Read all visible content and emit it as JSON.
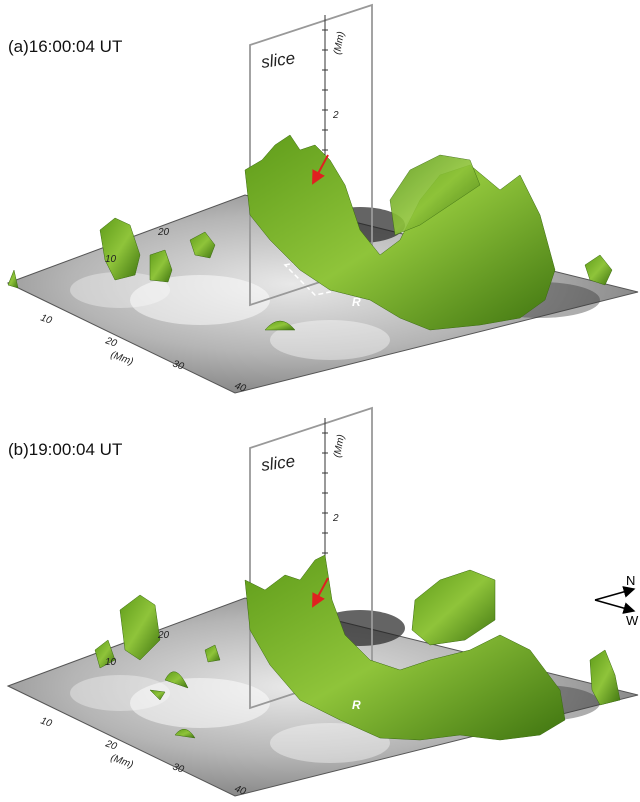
{
  "panels": [
    {
      "label": "(a)16:00:04 UT",
      "slice_label": "slice",
      "slice_unit": "(Mm)",
      "slice_tick": "2",
      "floor_x_ticks": [
        "10",
        "20",
        "30",
        "40"
      ],
      "floor_x_unit": "(Mm)",
      "floor_y_ticks": [
        "10",
        "20"
      ],
      "region_label": "R"
    },
    {
      "label": "(b)19:00:04 UT",
      "slice_label": "slice",
      "slice_unit": "(Mm)",
      "slice_tick": "2",
      "floor_x_ticks": [
        "10",
        "20",
        "30",
        "40"
      ],
      "floor_x_unit": "(Mm)",
      "floor_y_ticks": [
        "10",
        "20"
      ],
      "region_label": "R"
    }
  ],
  "compass": {
    "north": "N",
    "west": "W"
  }
}
